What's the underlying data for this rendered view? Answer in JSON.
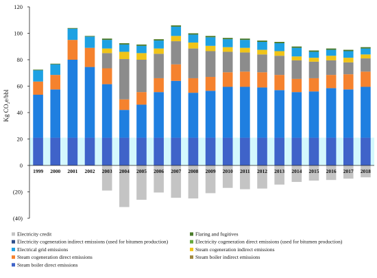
{
  "chart_data": {
    "type": "bar",
    "stacked": true,
    "title": "",
    "xlabel": "",
    "ylabel": "Kg CO₂e/bbl",
    "ylim": [
      -40,
      120
    ],
    "yticks": [
      -40,
      -20,
      0,
      20,
      40,
      60,
      80,
      100,
      120
    ],
    "ytick_labels": [
      "(40)",
      "(20)",
      "0",
      "20",
      "40",
      "60",
      "80",
      "100",
      "120"
    ],
    "grid": false,
    "legend_position": "bottom",
    "categories": [
      "1999",
      "2000",
      "2001",
      "2002",
      "2003",
      "2004",
      "2005",
      "2006",
      "2007",
      "2008",
      "2009",
      "2010",
      "2011",
      "2012",
      "2013",
      "2014",
      "2015",
      "2016",
      "2017",
      "2018"
    ],
    "series": [
      {
        "name": "Steam boiler direct emissions",
        "color": "#3f63c9",
        "values": [
          21,
          21,
          21,
          21,
          21,
          21,
          21,
          21,
          21,
          21,
          21,
          21,
          21,
          21,
          21,
          21,
          21,
          21,
          21,
          21
        ]
      },
      {
        "name": "Steam boiler indirect emissions",
        "color": "#1f7fe0",
        "values": [
          32.5,
          36.5,
          59,
          53.5,
          40.5,
          21,
          25,
          34.5,
          43,
          34,
          35.5,
          38.5,
          38.5,
          38,
          36,
          34.5,
          35,
          37.5,
          36.5,
          38.5
        ]
      },
      {
        "name": "Steam cogeneration direct emissions",
        "color": "#f5822e",
        "values": [
          10,
          11,
          15,
          14.5,
          12,
          8,
          9.5,
          10.5,
          12.5,
          11,
          10.5,
          11,
          11.5,
          11.5,
          11.5,
          10,
          10,
          10,
          11.5,
          11.5
        ]
      },
      {
        "name": "Steam cogeneration indirect emissions",
        "color": "#8c8c8c",
        "values": [
          0,
          0,
          0,
          0,
          11.5,
          30.5,
          24.5,
          18.5,
          17.5,
          22.5,
          19.5,
          15.5,
          14.5,
          13.5,
          14.5,
          14,
          12.5,
          11,
          9,
          10
        ]
      },
      {
        "name": "Electrical grid emissions",
        "color": "#f0c419",
        "values": [
          0,
          0,
          0,
          0,
          3.5,
          5.5,
          5,
          4,
          4,
          4.5,
          4,
          3.5,
          3.5,
          3.5,
          3.5,
          3,
          3,
          3.5,
          3.5,
          3
        ]
      },
      {
        "name": "Electricity cogeneration direct emissions (used for bitumen production)",
        "color": "#1ea1e3",
        "values": [
          8.5,
          8,
          8.5,
          8.5,
          6.5,
          5.5,
          5.5,
          6,
          7,
          6,
          6.5,
          6,
          6,
          6,
          6,
          6.5,
          4.5,
          4.5,
          5,
          4.5
        ]
      },
      {
        "name": "Electricity cogeneration indirect emissions (used for bitumen production)",
        "color": "#2e4f8c",
        "values": [
          0,
          0,
          0,
          0,
          0,
          0,
          0,
          0,
          0,
          0,
          0,
          0,
          0,
          0,
          0,
          0,
          0,
          0,
          0,
          0
        ]
      },
      {
        "name": "Flaring and fugitives",
        "color": "#4a7a2a",
        "values": [
          0.5,
          0.5,
          0.5,
          0.5,
          1,
          1,
          1,
          1,
          1,
          1,
          1,
          1,
          1,
          1,
          1,
          1,
          1,
          1,
          1,
          1
        ]
      },
      {
        "name": "Electricity credit",
        "color": "#c4c4c4",
        "values": [
          0,
          0,
          0,
          0,
          -19,
          -31.5,
          -26,
          -20.5,
          -24.5,
          -25,
          -21,
          -17,
          -18,
          -17.5,
          -14.5,
          -12.5,
          -11.5,
          -11,
          -10,
          -9
        ]
      }
    ],
    "highlight_band": [
      0,
      21
    ]
  },
  "legend": {
    "left": [
      {
        "label": "Electricity credit",
        "color": "#c4c4c4"
      },
      {
        "label": "Electricity cogeneration indirect emissions (used for bitumen production)",
        "color": "#2e4f8c"
      },
      {
        "label": "Electrical grid emissions",
        "color": "#1ea1e3"
      },
      {
        "label": "Steam cogeneration direct emissions",
        "color": "#f5822e"
      },
      {
        "label": "Steam boiler direct emissions",
        "color": "#3f63c9"
      }
    ],
    "right": [
      {
        "label": "Flaring and fugitives",
        "color": "#4a7a2a"
      },
      {
        "label": "Electricity cogeneration direct emissions (used for bitumen production)",
        "color": "#66a83c"
      },
      {
        "label": "Steam cogeneration indirect emissions",
        "color": "#f0c419"
      },
      {
        "label": "Steam boiler indirect emissions",
        "color": "#a08840"
      }
    ]
  }
}
